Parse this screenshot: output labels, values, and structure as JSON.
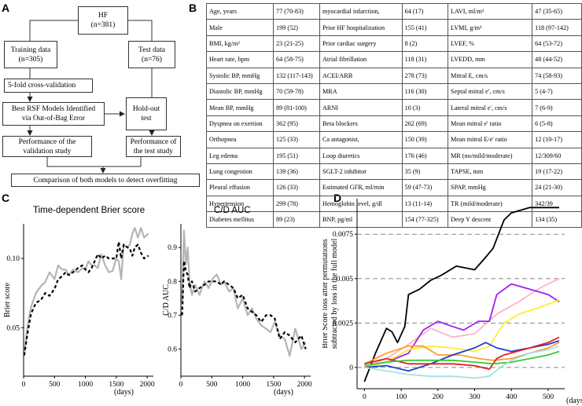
{
  "panels": {
    "a": "A",
    "b": "B",
    "c": "C",
    "d": "D"
  },
  "flowchart": {
    "hf_title": "HF",
    "hf_n": "(n=381)",
    "training_title": "Training data",
    "training_n": "(n=305)",
    "test_title": "Test data",
    "test_n": "(n=76)",
    "cv": "5-fold cross-validation",
    "best_line1": "Best RSF Models Identified",
    "best_line2": "via Out-of-Bag Error",
    "holdout_line1": "Hold-out",
    "holdout_line2": "test",
    "perf_val_line1": "Performance of the",
    "perf_val_line2": "validation study",
    "perf_test_line1": "Performance of",
    "perf_test_line2": "the test study",
    "comparison": "Comparison of both models to detect overfitting"
  },
  "table": {
    "rows": [
      [
        "Age, years",
        "77 (70-83)",
        "myocardial infarction,",
        "64 (17)",
        "LAVI, ml/m²",
        "47 (35-65)"
      ],
      [
        "Male",
        "199 (52)",
        "Prior HF hospitalization",
        "155 (41)",
        "LVMI, g/m²",
        "118 (97-142)"
      ],
      [
        "BMI, kg/m²",
        "23 (21-25)",
        "Prior cardiac surgery",
        "8 (2)",
        "LVEF, %",
        "64 (53-72)"
      ],
      [
        "Heart rate, bpm",
        "64 (58-75)",
        "Atrial fibrillation",
        "118 (31)",
        "LVEDD, mm",
        "48 (44-52)"
      ],
      [
        "Systolic BP, mmHg",
        "132 (117-143)",
        "ACEI/ARB",
        "278 (73)",
        "Mitral E, cm/s",
        "74 (58-93)"
      ],
      [
        "Diastolic BP, mmHg",
        "70 (59-78)",
        "MRA",
        "116 (30)",
        "Septal mitral e', cm/s",
        "5 (4-7)"
      ],
      [
        "Mean BP, mmHg",
        "89 (81-100)",
        "ARNI",
        "10 (3)",
        "Lateral mitral e', cm/s",
        "7 (6-9)"
      ],
      [
        "Dyspnea on exertion",
        "362 (95)",
        "Beta blockers",
        "262 (69)",
        "Mean mitral e' ratio",
        "6 (5-8)"
      ],
      [
        "Orthopnea",
        "125 (33)",
        "Ca antagonist,",
        "150 (39)",
        "Mean mitral E/e' ratio",
        "12 (10-17)"
      ],
      [
        "Leg edema",
        "195 (51)",
        "Loop diuretics",
        "176 (46)",
        "MR (no/mild/moderate)",
        "12/309/60"
      ],
      [
        "Lung congestion",
        "139 (36)",
        "SGLT-2 inhibitor",
        "35 (9)",
        "TAPSE, mm",
        "19 (17-22)"
      ],
      [
        "Pleural effusion",
        "126 (33)",
        "Estimated GFR, ml/min",
        "59 (47-73)",
        "SPAP, mmHg",
        "24 (21-30)"
      ],
      [
        "Hypertension",
        "299 (78)",
        "Hemoglobin level, g/dl",
        "13 (11-14)",
        "TR (mild/moderate)",
        "342/39"
      ],
      [
        "Diabetes mellitus",
        "89 (23)",
        "BNP, pg/ml",
        "154 (77-325)",
        "Deep Y descent",
        "134 (35)"
      ]
    ]
  },
  "colors": {
    "grey": "#b4b4b4",
    "black": "#000000"
  },
  "chart_data": [
    {
      "type": "line",
      "title": "Time-dependent Brier score",
      "xlabel": "(days)",
      "ylabel": "Brier score",
      "xlim": [
        0,
        2100
      ],
      "ylim": [
        0.015,
        0.125
      ],
      "xticks": [
        0,
        500,
        1000,
        1500,
        2000
      ],
      "yticks": [
        0.05,
        0.1
      ],
      "ytick_labels": [
        "0.05",
        "0.10"
      ],
      "series": [
        {
          "name": "validation (solid grey)",
          "style": "solid",
          "color": "#b4b4b4",
          "x": [
            10,
            60,
            120,
            200,
            280,
            350,
            420,
            500,
            560,
            620,
            680,
            730,
            800,
            880,
            950,
            1000,
            1050,
            1100,
            1150,
            1200,
            1260,
            1320,
            1380,
            1440,
            1500,
            1540,
            1580,
            1620,
            1680,
            1720,
            1760,
            1800,
            1850,
            1900,
            1950,
            2020
          ],
          "y": [
            0.03,
            0.05,
            0.065,
            0.075,
            0.08,
            0.083,
            0.09,
            0.085,
            0.095,
            0.092,
            0.092,
            0.088,
            0.092,
            0.09,
            0.093,
            0.092,
            0.098,
            0.095,
            0.095,
            0.093,
            0.103,
            0.095,
            0.09,
            0.091,
            0.1,
            0.098,
            0.085,
            0.11,
            0.108,
            0.11,
            0.118,
            0.122,
            0.115,
            0.122,
            0.115,
            0.118
          ]
        },
        {
          "name": "test (dashed black)",
          "style": "dashed",
          "color": "#000000",
          "x": [
            10,
            60,
            120,
            200,
            280,
            350,
            420,
            500,
            560,
            620,
            680,
            730,
            800,
            880,
            950,
            1000,
            1050,
            1100,
            1150,
            1200,
            1260,
            1320,
            1380,
            1440,
            1500,
            1540,
            1580,
            1620,
            1680,
            1720,
            1760,
            1800,
            1850,
            1900,
            1950,
            2020
          ],
          "y": [
            0.03,
            0.045,
            0.06,
            0.068,
            0.07,
            0.075,
            0.073,
            0.078,
            0.085,
            0.087,
            0.09,
            0.088,
            0.09,
            0.093,
            0.095,
            0.092,
            0.09,
            0.093,
            0.098,
            0.103,
            0.1,
            0.102,
            0.1,
            0.1,
            0.1,
            0.112,
            0.1,
            0.11,
            0.108,
            0.107,
            0.102,
            0.108,
            0.11,
            0.104,
            0.1,
            0.102
          ]
        }
      ]
    },
    {
      "type": "line",
      "title": "C/D AUC",
      "xlabel": "(days)",
      "ylabel": "C/D AUC",
      "xlim": [
        0,
        2100
      ],
      "ylim": [
        0.52,
        0.97
      ],
      "xticks": [
        0,
        500,
        1000,
        1500,
        2000
      ],
      "yticks": [
        0.6,
        0.7,
        0.8,
        0.9
      ],
      "ytick_labels": [
        "0.6",
        "0.7",
        "0.8",
        "0.9"
      ],
      "series": [
        {
          "name": "validation (solid grey)",
          "style": "solid",
          "color": "#b4b4b4",
          "x": [
            20,
            50,
            80,
            110,
            140,
            180,
            230,
            300,
            380,
            450,
            520,
            580,
            650,
            700,
            780,
            850,
            920,
            1000,
            1080,
            1150,
            1220,
            1300,
            1380,
            1450,
            1520,
            1600,
            1680,
            1760,
            1850,
            1950,
            2020
          ],
          "y": [
            0.74,
            0.95,
            0.85,
            0.9,
            0.8,
            0.76,
            0.79,
            0.76,
            0.8,
            0.78,
            0.81,
            0.82,
            0.79,
            0.8,
            0.77,
            0.78,
            0.72,
            0.75,
            0.7,
            0.72,
            0.69,
            0.67,
            0.66,
            0.65,
            0.68,
            0.64,
            0.63,
            0.58,
            0.66,
            0.6,
            0.62
          ]
        },
        {
          "name": "test (dashed black)",
          "style": "dashed",
          "color": "#000000",
          "x": [
            20,
            50,
            80,
            110,
            140,
            180,
            230,
            300,
            380,
            450,
            520,
            580,
            650,
            700,
            780,
            850,
            920,
            1000,
            1080,
            1150,
            1220,
            1300,
            1380,
            1450,
            1520,
            1600,
            1680,
            1760,
            1850,
            1950,
            2020
          ],
          "y": [
            0.7,
            0.86,
            0.83,
            0.82,
            0.78,
            0.8,
            0.77,
            0.78,
            0.79,
            0.8,
            0.8,
            0.8,
            0.79,
            0.8,
            0.79,
            0.78,
            0.75,
            0.76,
            0.72,
            0.71,
            0.7,
            0.68,
            0.7,
            0.7,
            0.69,
            0.63,
            0.65,
            0.64,
            0.62,
            0.64,
            0.6
          ]
        }
      ]
    },
    {
      "type": "line",
      "title": "",
      "xlabel": "(days)",
      "ylabel_line1": "Brier Score loss after permutations",
      "ylabel_line2": "subtracted by loss in the full model",
      "xlim": [
        -20,
        545
      ],
      "ylim": [
        -0.0012,
        0.0095
      ],
      "xticks": [
        0,
        100,
        200,
        300,
        400,
        500
      ],
      "yticks": [
        0,
        0.0025,
        0.005,
        0.0075
      ],
      "ytick_labels": [
        "0",
        "0.0025",
        "0.005",
        "0.0075"
      ],
      "series": [
        {
          "name": "black",
          "color": "#000000",
          "x": [
            0,
            30,
            60,
            75,
            90,
            110,
            120,
            150,
            180,
            210,
            250,
            300,
            330,
            350,
            380,
            400,
            450,
            500,
            530
          ],
          "y": [
            -0.0008,
            0.0008,
            0.0022,
            0.002,
            0.0014,
            0.0023,
            0.0041,
            0.0044,
            0.0049,
            0.0052,
            0.0057,
            0.0055,
            0.0062,
            0.0067,
            0.0083,
            0.0087,
            0.009,
            0.009,
            0.009
          ]
        },
        {
          "name": "pink",
          "color": "#ffb3c1",
          "x": [
            0,
            60,
            120,
            180,
            240,
            300,
            360,
            420,
            480,
            530
          ],
          "y": [
            0,
            0.0005,
            0.0013,
            0.0022,
            0.0017,
            0.0019,
            0.003,
            0.0037,
            0.0045,
            0.005
          ]
        },
        {
          "name": "purple",
          "color": "#a020f0",
          "x": [
            0,
            60,
            120,
            160,
            200,
            240,
            270,
            310,
            340,
            360,
            400,
            450,
            500,
            530
          ],
          "y": [
            0,
            0.0003,
            0.0008,
            0.0021,
            0.0026,
            0.0023,
            0.0021,
            0.0026,
            0.0026,
            0.0041,
            0.0047,
            0.0044,
            0.0041,
            0.0037
          ]
        },
        {
          "name": "yellow",
          "color": "#ffee33",
          "x": [
            0,
            60,
            120,
            180,
            240,
            300,
            340,
            380,
            420,
            480,
            530
          ],
          "y": [
            0,
            0.0003,
            0.001,
            0.0012,
            0.0011,
            0.0009,
            0.0012,
            0.0025,
            0.003,
            0.0034,
            0.0038
          ]
        },
        {
          "name": "orange",
          "color": "#ff9d2e",
          "x": [
            0,
            60,
            120,
            160,
            200,
            260,
            310,
            350,
            400,
            450,
            500,
            530
          ],
          "y": [
            0.0002,
            0.0008,
            0.0012,
            0.0012,
            0.0007,
            0.0007,
            0.0005,
            0.0004,
            0.0005,
            0.0008,
            0.0011,
            0.0014
          ]
        },
        {
          "name": "blue",
          "color": "#1f3fd0",
          "x": [
            0,
            60,
            120,
            180,
            240,
            300,
            330,
            360,
            400,
            450,
            500,
            530
          ],
          "y": [
            0,
            0.0001,
            -0.0002,
            0.0002,
            0.0007,
            0.0011,
            0.0014,
            0.0011,
            0.0009,
            0.0011,
            0.0013,
            0.0015
          ]
        },
        {
          "name": "red",
          "color": "#e02020",
          "x": [
            0,
            60,
            120,
            180,
            240,
            300,
            340,
            360,
            380,
            450,
            500,
            530
          ],
          "y": [
            0.0002,
            0.0005,
            0.0002,
            0.0002,
            0.0002,
            0.0001,
            -0.0001,
            0.0005,
            0.0007,
            0.0011,
            0.0014,
            0.0017
          ]
        },
        {
          "name": "green",
          "color": "#33cc33",
          "x": [
            0,
            60,
            120,
            180,
            240,
            300,
            350,
            400,
            450,
            500,
            530
          ],
          "y": [
            0.0001,
            0.0003,
            0.0004,
            0.0004,
            0.0004,
            0.0003,
            0.0002,
            0.0003,
            0.0005,
            0.0007,
            0.0009
          ]
        },
        {
          "name": "lightblue",
          "color": "#a8e0e0",
          "x": [
            0,
            60,
            120,
            180,
            240,
            300,
            340,
            370,
            400,
            450,
            500,
            530
          ],
          "y": [
            0,
            -0.0002,
            -0.0004,
            -0.0005,
            -0.0005,
            -0.0006,
            -0.0005,
            0,
            0.0004,
            0.0008,
            0.001,
            0.0012
          ]
        }
      ]
    }
  ]
}
